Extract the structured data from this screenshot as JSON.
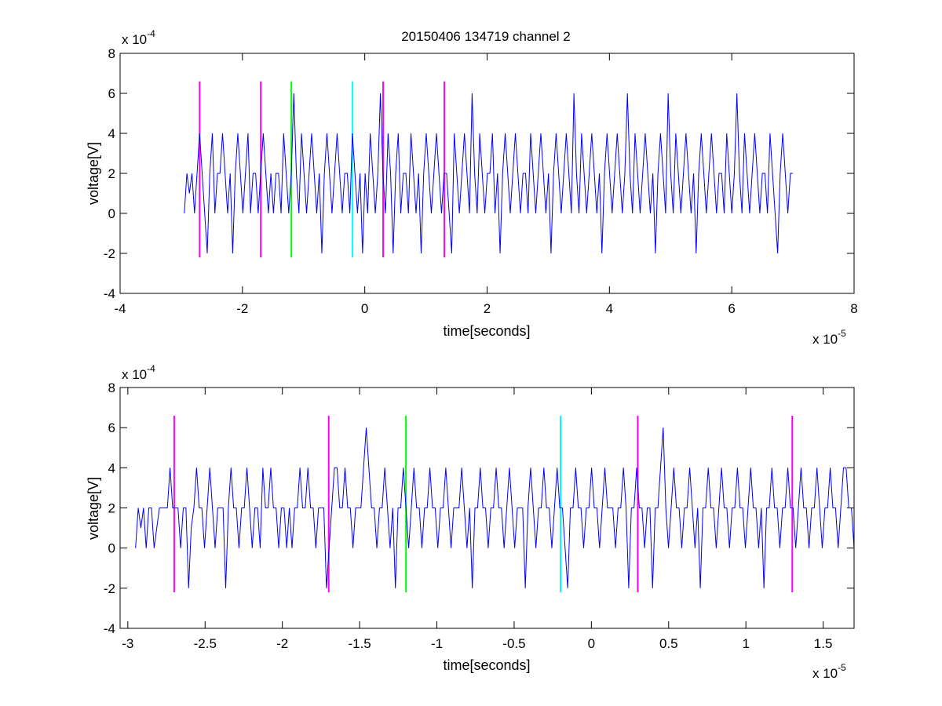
{
  "figure": {
    "title": "20150406 134719 channel 2",
    "background": "#ffffff"
  },
  "chart_data": [
    {
      "type": "line",
      "title": "20150406 134719 channel 2",
      "xlabel": "time[seconds]",
      "ylabel": "voltage[V]",
      "x_exponent_label": "x 10",
      "x_exponent": "-5",
      "y_exponent_label": "x 10",
      "y_exponent": "-4",
      "xlim": [
        -4,
        8
      ],
      "ylim": [
        -4,
        8
      ],
      "xticks": [
        -4,
        -2,
        0,
        2,
        4,
        6,
        8
      ],
      "xtick_labels": [
        "-4",
        "-2",
        "0",
        "2",
        "4",
        "6",
        "8"
      ],
      "yticks": [
        -4,
        -2,
        0,
        2,
        4,
        6,
        8
      ],
      "ytick_labels": [
        "-4",
        "-2",
        "0",
        "2",
        "4",
        "6",
        "8"
      ],
      "grid": false,
      "series": [
        {
          "color": "#0000ff",
          "x_start": -2.95,
          "x_end": 7.0,
          "values": [
            0,
            2,
            1,
            2,
            0,
            2,
            4,
            2,
            0,
            -2,
            2,
            4,
            0,
            2,
            2,
            4,
            2,
            0,
            2,
            -2,
            2,
            4,
            2,
            0,
            2,
            4,
            0,
            2,
            2,
            0,
            2,
            4,
            2,
            0,
            2,
            0,
            2,
            2,
            0,
            4,
            2,
            0,
            2,
            6,
            2,
            0,
            4,
            2,
            0,
            2,
            4,
            2,
            0,
            2,
            -2,
            2,
            4,
            2,
            0,
            2,
            4,
            2,
            0,
            2,
            2,
            0,
            4,
            2,
            0,
            2,
            -2,
            2,
            0,
            4,
            2,
            0,
            2,
            6,
            2,
            0,
            4,
            2,
            -2,
            2,
            4,
            0,
            2,
            2,
            0,
            4,
            2,
            0,
            2,
            -2,
            2,
            4,
            2,
            0,
            2,
            4,
            2,
            0,
            2,
            2,
            0,
            -2,
            4,
            2,
            0,
            2,
            4,
            2,
            0,
            6,
            2,
            0,
            4,
            2,
            0,
            2,
            2,
            4,
            0,
            2,
            -2,
            2,
            4,
            2,
            0,
            2,
            4,
            2,
            0,
            2,
            2,
            0,
            4,
            2,
            0,
            2,
            4,
            2,
            0,
            2,
            -2,
            2,
            4,
            2,
            0,
            2,
            4,
            2,
            0,
            6,
            2,
            0,
            4,
            2,
            0,
            2,
            4,
            2,
            0,
            2,
            -2,
            2,
            4,
            2,
            0,
            2,
            4,
            2,
            0,
            2,
            6,
            2,
            0,
            4,
            2,
            0,
            2,
            4,
            2,
            0,
            2,
            -2,
            2,
            4,
            2,
            0,
            6,
            2,
            0,
            4,
            2,
            0,
            2,
            4,
            2,
            0,
            2,
            -2,
            2,
            4,
            2,
            0,
            2,
            4,
            2,
            0,
            2,
            2,
            0,
            4,
            2,
            0,
            2,
            6,
            2,
            0,
            4,
            2,
            0,
            2,
            4,
            2,
            0,
            2,
            2,
            0,
            4,
            2,
            0,
            -2,
            2,
            4,
            2,
            0,
            2,
            2
          ]
        }
      ],
      "markers": [
        {
          "x": -2.7,
          "color": "#ff00ff"
        },
        {
          "x": -1.7,
          "color": "#ff00ff"
        },
        {
          "x": -1.2,
          "color": "#00ff00"
        },
        {
          "x": -0.2,
          "color": "#00ffff"
        },
        {
          "x": 0.3,
          "color": "#ff00ff"
        },
        {
          "x": 1.3,
          "color": "#ff00ff"
        }
      ],
      "marker_range": [
        -2.2,
        6.6
      ]
    },
    {
      "type": "line",
      "title": "",
      "xlabel": "time[seconds]",
      "ylabel": "voltage[V]",
      "x_exponent_label": "x 10",
      "x_exponent": "-5",
      "y_exponent_label": "x 10",
      "y_exponent": "-4",
      "xlim": [
        -3.05,
        1.7
      ],
      "ylim": [
        -4,
        8
      ],
      "xticks": [
        -3,
        -2.5,
        -2,
        -1.5,
        -1,
        -0.5,
        0,
        0.5,
        1,
        1.5
      ],
      "xtick_labels": [
        "-3",
        "-2.5",
        "-2",
        "-1.5",
        "-1",
        "-0.5",
        "0",
        "0.5",
        "1",
        "1.5"
      ],
      "yticks": [
        -4,
        -2,
        0,
        2,
        4,
        6,
        8
      ],
      "ytick_labels": [
        "-4",
        "-2",
        "0",
        "2",
        "4",
        "6",
        "8"
      ],
      "grid": false,
      "series": [
        {
          "color": "#0000ff",
          "x_start": -2.95,
          "x_end": 1.7,
          "values": [
            0,
            2,
            1,
            2,
            0,
            2,
            2,
            0,
            1,
            2,
            2,
            2,
            2,
            4,
            2,
            2,
            2,
            0,
            2,
            2,
            -2,
            1,
            2,
            4,
            2,
            2,
            0,
            2,
            4,
            2,
            0,
            2,
            2,
            2,
            -2,
            2,
            4,
            2,
            2,
            0,
            2,
            2,
            4,
            2,
            0,
            2,
            2,
            0,
            4,
            2,
            2,
            4,
            2,
            2,
            0,
            2,
            2,
            0,
            2,
            0,
            2,
            2,
            4,
            2,
            2,
            4,
            2,
            2,
            0,
            2,
            2,
            2,
            -2,
            0,
            2,
            4,
            4,
            2,
            2,
            4,
            2,
            2,
            0,
            2,
            2,
            2,
            4,
            6,
            4,
            2,
            2,
            0,
            2,
            2,
            4,
            2,
            0,
            2,
            -2,
            2,
            2,
            4,
            2,
            0,
            2,
            4,
            2,
            2,
            0,
            2,
            2,
            4,
            2,
            2,
            0,
            2,
            2,
            4,
            2,
            0,
            2,
            2,
            2,
            4,
            2,
            0,
            2,
            -2,
            2,
            2,
            4,
            2,
            2,
            0,
            2,
            2,
            4,
            2,
            2,
            0,
            2,
            4,
            2,
            0,
            2,
            2,
            2,
            -2,
            2,
            4,
            2,
            0,
            2,
            2,
            4,
            2,
            2,
            0,
            2,
            4,
            2,
            2,
            0,
            -2,
            2,
            2,
            4,
            2,
            2,
            0,
            2,
            2,
            4,
            2,
            2,
            0,
            2,
            4,
            2,
            2,
            2,
            0,
            2,
            2,
            4,
            2,
            -2,
            2,
            2,
            4,
            2,
            2,
            0,
            2,
            2,
            -2,
            2,
            2,
            4,
            6,
            2,
            0,
            2,
            4,
            2,
            2,
            0,
            2,
            2,
            4,
            2,
            0,
            2,
            -2,
            2,
            2,
            4,
            2,
            2,
            0,
            2,
            4,
            2,
            2,
            0,
            2,
            2,
            4,
            2,
            2,
            0,
            2,
            4,
            2,
            2,
            0,
            2,
            -2,
            2,
            2,
            4,
            2,
            2,
            0,
            2,
            2,
            4,
            2,
            2,
            0,
            2,
            4,
            2,
            2,
            0,
            2,
            2,
            4,
            2,
            0,
            2,
            2,
            4,
            2,
            2,
            0,
            2,
            4,
            4,
            2,
            2,
            0
          ]
        }
      ],
      "markers": [
        {
          "x": -2.7,
          "color": "#ff00ff"
        },
        {
          "x": -1.7,
          "color": "#ff00ff"
        },
        {
          "x": -1.2,
          "color": "#00ff00"
        },
        {
          "x": -0.2,
          "color": "#00ffff"
        },
        {
          "x": 0.3,
          "color": "#ff00ff"
        },
        {
          "x": 1.3,
          "color": "#ff00ff"
        }
      ],
      "marker_range": [
        -2.2,
        6.6
      ]
    }
  ]
}
